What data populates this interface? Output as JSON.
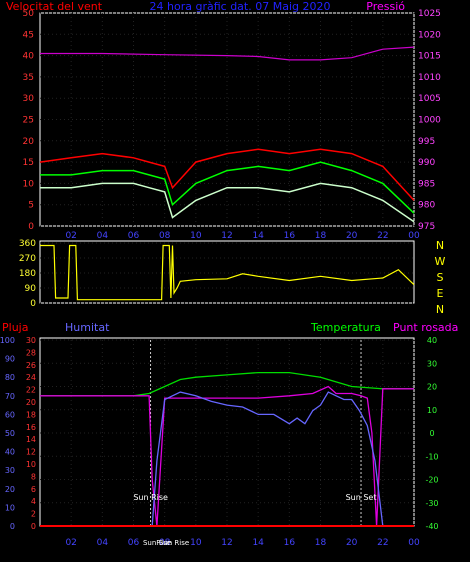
{
  "title": "24 hora gràfic dat. 07 Maig 2020",
  "chart_data": [
    {
      "type": "line",
      "left_label": "Velocitat del vent",
      "right_label": "Pressió",
      "x_ticks": [
        "02",
        "04",
        "06",
        "08",
        "10",
        "12",
        "14",
        "16",
        "18",
        "20",
        "22",
        "00"
      ],
      "y_left_ticks": [
        0,
        5,
        10,
        15,
        20,
        25,
        30,
        35,
        40,
        45,
        50
      ],
      "y_right_ticks": [
        975,
        980,
        985,
        990,
        995,
        1000,
        1005,
        1010,
        1015,
        1020,
        1025
      ],
      "ylim_left": [
        0,
        50
      ],
      "ylim_right": [
        975,
        1025
      ],
      "series": [
        {
          "name": "gust",
          "color": "#ff0000",
          "x": [
            0,
            2,
            4,
            6,
            7,
            8,
            8.5,
            10,
            12,
            14,
            16,
            18,
            20,
            22,
            24
          ],
          "values": [
            15,
            16,
            17,
            16,
            15,
            14,
            9,
            15,
            17,
            18,
            17,
            18,
            17,
            14,
            6
          ]
        },
        {
          "name": "average",
          "color": "#00ff00",
          "x": [
            0,
            2,
            4,
            6,
            7,
            8,
            8.5,
            10,
            12,
            14,
            16,
            18,
            20,
            22,
            24
          ],
          "values": [
            12,
            12,
            13,
            13,
            12,
            11,
            5,
            10,
            13,
            14,
            13,
            15,
            13,
            10,
            3
          ]
        },
        {
          "name": "speed",
          "color": "#ccffcc",
          "x": [
            0,
            2,
            4,
            6,
            7,
            8,
            8.5,
            10,
            12,
            14,
            16,
            18,
            20,
            22,
            24
          ],
          "values": [
            9,
            9,
            10,
            10,
            9,
            8,
            2,
            6,
            9,
            9,
            8,
            10,
            9,
            6,
            1
          ]
        },
        {
          "name": "pressure",
          "color": "#cc00cc",
          "x": [
            0,
            4,
            8,
            12,
            14,
            16,
            18,
            20,
            22,
            24
          ],
          "values": [
            1015.5,
            1015.5,
            1015.2,
            1015,
            1014.8,
            1014,
            1014,
            1014.5,
            1016.5,
            1017
          ]
        }
      ]
    },
    {
      "type": "line",
      "y_ticks": [
        0,
        90,
        180,
        270,
        360
      ],
      "ylim": [
        0,
        360
      ],
      "compass": [
        "N",
        "W",
        "S",
        "E",
        "N"
      ],
      "series": [
        {
          "name": "direction",
          "color": "#ffff00",
          "x": [
            0,
            0.9,
            1.0,
            1.8,
            1.9,
            2.3,
            2.4,
            7.8,
            7.9,
            8.3,
            8.4,
            8.5,
            8.6,
            8.8,
            9,
            10,
            12,
            13,
            14,
            16,
            18,
            20,
            22,
            23,
            24
          ],
          "values": [
            345,
            345,
            30,
            30,
            345,
            345,
            20,
            20,
            345,
            345,
            30,
            345,
            60,
            90,
            130,
            140,
            145,
            175,
            160,
            135,
            160,
            135,
            150,
            200,
            110
          ]
        }
      ]
    },
    {
      "type": "line",
      "labels": {
        "rain": "Pluja",
        "humidity": "Humitat",
        "temperature": "Temperatura",
        "dew_point": "Punt rosada"
      },
      "annotations": {
        "sunrise": "Sun Rise",
        "sunset": "Sun Set"
      },
      "x_ticks": [
        "02",
        "04",
        "06",
        "08",
        "10",
        "12",
        "14",
        "16",
        "18",
        "20",
        "22",
        "00"
      ],
      "x_extra_labels": [
        "SunRise",
        "Sun Rise"
      ],
      "y_rain_ticks": [
        0,
        10,
        20,
        30,
        40,
        50,
        60,
        70,
        80,
        90,
        100
      ],
      "y_humidity_ticks": [
        0,
        2,
        4,
        6,
        8,
        10,
        12,
        14,
        16,
        18,
        20,
        22,
        24,
        26,
        28,
        30
      ],
      "y_temp_ticks": [
        -40,
        -30,
        -20,
        -10,
        0,
        10,
        20,
        30,
        40
      ],
      "ylim_percent": [
        0,
        100
      ],
      "ylim_temp": [
        -40,
        40
      ],
      "sunrise_hour": 7.1,
      "sunset_hour": 20.6,
      "series": [
        {
          "name": "Temperatura",
          "color": "#00dd00",
          "x": [
            0,
            4,
            6,
            7,
            8,
            9,
            10,
            12,
            14,
            16,
            18,
            19,
            20,
            22,
            24
          ],
          "values": [
            16,
            16,
            16,
            17,
            20,
            23,
            24,
            25,
            26,
            26,
            24,
            22,
            20,
            19,
            19
          ]
        },
        {
          "name": "Punt rosada",
          "color": "#dd00dd",
          "x": [
            0,
            4,
            6,
            7,
            7.2,
            7.5,
            8,
            10,
            12,
            14,
            16,
            17.5,
            18.5,
            19,
            20,
            20.6,
            21,
            21.3,
            21.6,
            22,
            24
          ],
          "values": [
            16,
            16,
            16,
            16,
            -20,
            -40,
            15,
            15,
            15,
            15,
            16,
            17,
            20,
            17,
            17,
            16,
            15,
            0,
            -40,
            19,
            19
          ]
        },
        {
          "name": "Humitat",
          "color": "#6666ff",
          "x": [
            7.2,
            7.5,
            8,
            9,
            10,
            11,
            12,
            13,
            14,
            15,
            16,
            16.5,
            17,
            17.5,
            18,
            18.5,
            19,
            19.5,
            20,
            20.5,
            21,
            21.5,
            22
          ],
          "values": [
            0,
            35,
            68,
            72,
            70,
            67,
            65,
            64,
            60,
            60,
            55,
            58,
            55,
            62,
            65,
            72,
            70,
            68,
            68,
            62,
            54,
            35,
            0
          ]
        },
        {
          "name": "Pluja",
          "color": "#ff0000",
          "x": [
            0,
            24
          ],
          "values": [
            0,
            0
          ]
        }
      ]
    }
  ]
}
